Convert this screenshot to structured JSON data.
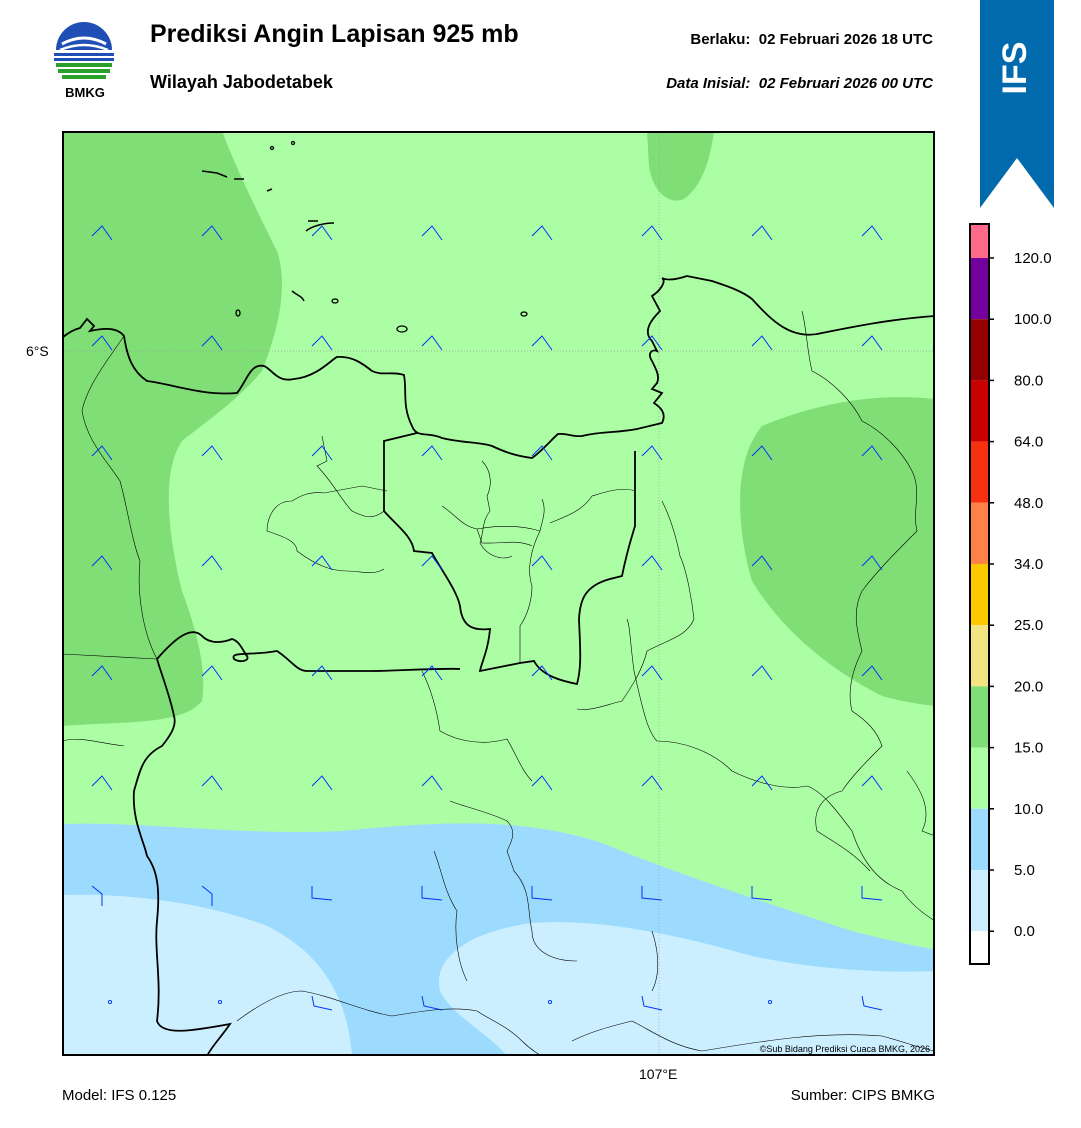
{
  "header": {
    "title": "Prediksi Angin Lapisan 925 mb",
    "subtitle": "Wilayah Jabodetabek",
    "valid_label": "Berlaku:",
    "valid_value": "02 Februari 2026 18 UTC",
    "init_label": "Data Inisial:",
    "init_value": "02 Februari 2026 00 UTC"
  },
  "logo": {
    "text": "BMKG",
    "icon": "bmkg-logo-icon"
  },
  "ribbon": {
    "text": "IFS",
    "color": "#006aad"
  },
  "map": {
    "lat_label": "6°S",
    "lon_label": "107°E",
    "credit": "©Sub Bidang Prediksi Cuaca BMKG, 2026",
    "barb_color": "#0033ff"
  },
  "legend": {
    "levels": [
      "0.0",
      "5.0",
      "10.0",
      "15.0",
      "20.0",
      "25.0",
      "34.0",
      "48.0",
      "64.0",
      "80.0",
      "100.0",
      "120.0"
    ],
    "colors": [
      "#ffffff",
      "#cbefff",
      "#9ddbfe",
      "#acfea5",
      "#7fdf76",
      "#f2e581",
      "#fcc900",
      "#fe8147",
      "#f5310f",
      "#c80000",
      "#950000",
      "#74009e",
      "#ff6a8a"
    ]
  },
  "footer": {
    "model": "Model: IFS 0.125",
    "source": "Sumber: CIPS BMKG"
  }
}
